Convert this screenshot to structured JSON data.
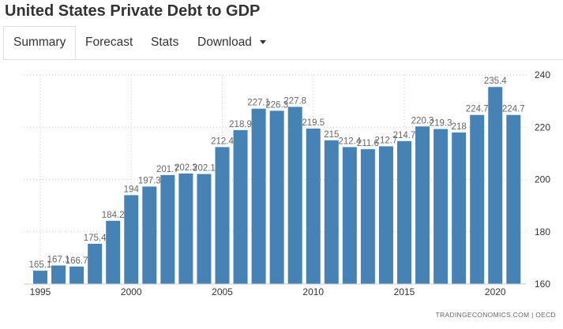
{
  "page": {
    "title": "United States Private Debt to GDP"
  },
  "tabs": [
    {
      "label": "Summary",
      "active": true
    },
    {
      "label": "Forecast",
      "active": false
    },
    {
      "label": "Stats",
      "active": false
    },
    {
      "label": "Download",
      "active": false
    }
  ],
  "colors": {
    "bar": "#4682b4",
    "text": "#333333",
    "axis_text": "#333333",
    "data_label": "#666666",
    "grid": "#cccccc"
  },
  "source": "TRADINGECONOMICS.COM  |  OECD",
  "chart_data": {
    "type": "bar",
    "title": "United States Private Debt to GDP",
    "xlabel": "",
    "ylabel": "",
    "categories": [
      "1995",
      "1996",
      "1997",
      "1998",
      "1999",
      "2000",
      "2001",
      "2002",
      "2003",
      "2004",
      "2005",
      "2006",
      "2007",
      "2008",
      "2009",
      "2010",
      "2011",
      "2012",
      "2013",
      "2014",
      "2015",
      "2016",
      "2017",
      "2018",
      "2019",
      "2020",
      "2021"
    ],
    "values": [
      165.1,
      167.1,
      166.7,
      175.4,
      184.2,
      194,
      197.3,
      201.7,
      202.3,
      202.1,
      212.4,
      218.9,
      227.1,
      226.3,
      227.8,
      219.5,
      215,
      212.4,
      211.6,
      212.7,
      214.7,
      220.3,
      219.3,
      218,
      224.7,
      235.4,
      224.7
    ],
    "data_labels": [
      "165.1",
      "167.1",
      "166.7",
      "175.4",
      "184.2",
      "194",
      "197.3",
      "201.7",
      "202.3",
      "202.1",
      "212.4",
      "218.9",
      "227.1",
      "226.3",
      "227.8",
      "219.5",
      "215",
      "212.4",
      "211.6",
      "212.7",
      "214.7",
      "220.3",
      "219.3",
      "218",
      "224.7",
      "235.4",
      "224.7"
    ],
    "xticks": [
      "1995",
      "2000",
      "2005",
      "2010",
      "2015",
      "2020"
    ],
    "yticks": [
      "160",
      "180",
      "200",
      "220",
      "240"
    ],
    "ylim": [
      160,
      240
    ],
    "grid": true,
    "y_axis_side": "right"
  }
}
